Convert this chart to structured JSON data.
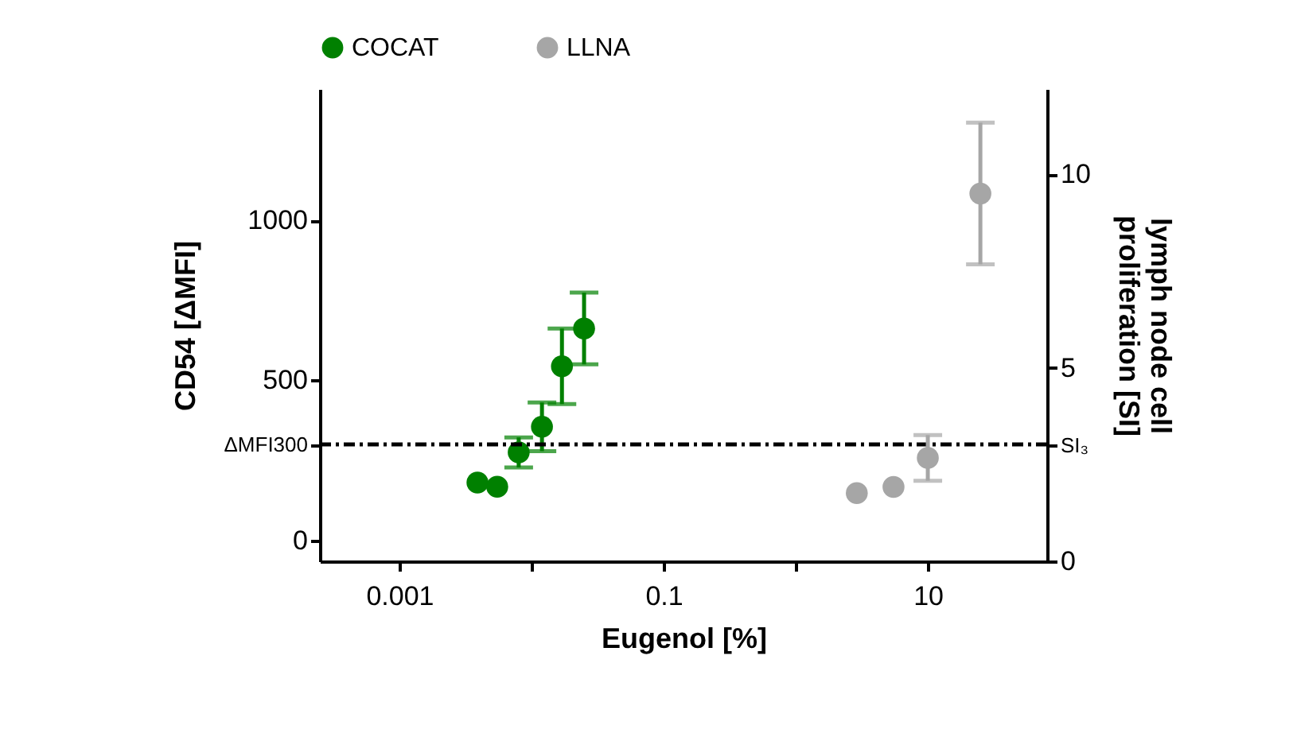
{
  "chart_data": {
    "type": "scatter",
    "xlabel": "Eugenol [%]",
    "ylabel": "CD54 [ΔMFI]",
    "y2label": "lymph node cell proliferation [SI]",
    "log": "x",
    "xlim": [
      0.00025,
      80
    ],
    "xticks": [
      0.001,
      {
        "value": 0.01,
        "label": null
      },
      0.1,
      {
        "value": 1,
        "label": null
      },
      10
    ],
    "ylim": [
      -65,
      1410
    ],
    "yticks": [
      0,
      {
        "value": 300,
        "label": "ΔMFI300"
      },
      500,
      1000
    ],
    "y2lim": [
      0,
      12.2
    ],
    "y2ticks": [
      0,
      {
        "value": 3,
        "label": "SI₃"
      },
      5,
      10
    ],
    "grid": false,
    "legend": "top",
    "marker": "circle",
    "series": [
      {
        "name": "COCAT",
        "color": "#008000",
        "axis": "y",
        "x": [
          0.0039,
          0.0055,
          0.008,
          0.012,
          0.017,
          0.025
        ],
        "values": [
          181,
          168,
          275,
          355,
          544,
          662
        ],
        "errors": [
          null,
          null,
          47,
          76,
          118,
          112
        ]
      },
      {
        "name": "LLNA",
        "color": "#a6a6a6",
        "axis": "y2",
        "x": [
          2.9,
          5.5,
          10,
          25
        ],
        "values": [
          1.76,
          1.92,
          2.67,
          9.5
        ],
        "errors": [
          null,
          null,
          0.59,
          1.83
        ]
      }
    ],
    "ref_lines": [
      {
        "axis": "y",
        "value": 300,
        "color": "#000000",
        "line_style": "dashdot"
      }
    ]
  }
}
